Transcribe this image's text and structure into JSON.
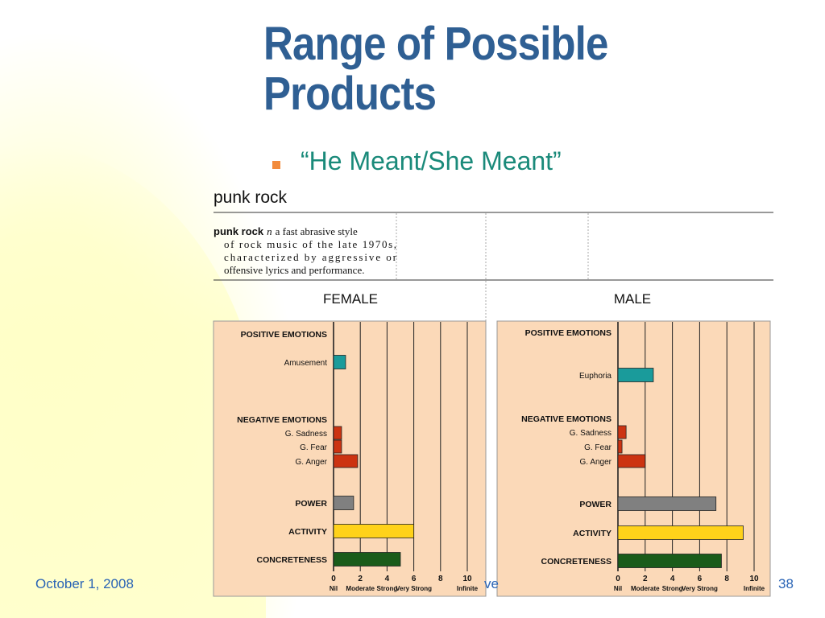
{
  "slide": {
    "title": "Range of Possible Products",
    "bullet": "“He Meant/She Meant”",
    "footer_date": "October 1, 2008",
    "footer_mid": "ve",
    "page_number": "38"
  },
  "dictionary": {
    "heading": "punk rock",
    "term": "punk rock",
    "pos": "n",
    "definition_lines": [
      "a fast abrasive style",
      "of rock music of the late 1970s,",
      "characterized by aggressive or",
      "offensive lyrics and performance."
    ]
  },
  "colors": {
    "panel_bg": "#fbd9b8",
    "positive": "#1a9b9b",
    "negative": "#cc3311",
    "power": "#808080",
    "activity": "#ffd21a",
    "concreteness": "#1a5c1a",
    "title": "#2f5f93",
    "bullet_text": "#1a8a7a",
    "bullet_mark": "#f28b3c",
    "footer": "#2a64b5"
  },
  "chart_data": [
    {
      "type": "bar",
      "orientation": "horizontal",
      "title": "FEMALE",
      "xlim": [
        0,
        10
      ],
      "xticks": [
        0,
        2,
        4,
        6,
        8,
        10
      ],
      "xtick_labels": [
        "Nil",
        "Moderate",
        "Strong",
        "Very Strong",
        "Infinite"
      ],
      "groups": [
        {
          "label": "POSITIVE EMOTIONS",
          "bars": [
            {
              "label": "Amusement",
              "value": 0.9,
              "kind": "positive"
            }
          ]
        },
        {
          "label": "NEGATIVE EMOTIONS",
          "bars": [
            {
              "label": "G. Sadness",
              "value": 0.6,
              "kind": "negative"
            },
            {
              "label": "G. Fear",
              "value": 0.6,
              "kind": "negative"
            },
            {
              "label": "G. Anger",
              "value": 1.8,
              "kind": "negative"
            }
          ]
        },
        {
          "label": "",
          "bars": [
            {
              "label": "POWER",
              "value": 1.5,
              "kind": "power",
              "bold": true
            }
          ]
        },
        {
          "label": "",
          "bars": [
            {
              "label": "ACTIVITY",
              "value": 6.0,
              "kind": "activity",
              "bold": true
            }
          ]
        },
        {
          "label": "",
          "bars": [
            {
              "label": "CONCRETENESS",
              "value": 5.0,
              "kind": "concreteness",
              "bold": true
            }
          ]
        }
      ]
    },
    {
      "type": "bar",
      "orientation": "horizontal",
      "title": "MALE",
      "xlim": [
        0,
        10
      ],
      "xticks": [
        0,
        2,
        4,
        6,
        8,
        10
      ],
      "xtick_labels": [
        "Nil",
        "Moderate",
        "Strong",
        "Very Strong",
        "Infinite"
      ],
      "groups": [
        {
          "label": "POSITIVE EMOTIONS",
          "bars": [
            {
              "label": "Euphoria",
              "value": 2.6,
              "kind": "positive"
            }
          ]
        },
        {
          "label": "NEGATIVE EMOTIONS",
          "bars": [
            {
              "label": "G. Sadness",
              "value": 0.6,
              "kind": "negative"
            },
            {
              "label": "G. Fear",
              "value": 0.3,
              "kind": "negative"
            },
            {
              "label": "G. Anger",
              "value": 2.0,
              "kind": "negative"
            }
          ]
        },
        {
          "label": "",
          "bars": [
            {
              "label": "POWER",
              "value": 7.2,
              "kind": "power",
              "bold": true
            }
          ]
        },
        {
          "label": "",
          "bars": [
            {
              "label": "ACTIVITY",
              "value": 9.2,
              "kind": "activity",
              "bold": true
            }
          ]
        },
        {
          "label": "",
          "bars": [
            {
              "label": "CONCRETENESS",
              "value": 7.6,
              "kind": "concreteness",
              "bold": true
            }
          ]
        }
      ]
    }
  ]
}
